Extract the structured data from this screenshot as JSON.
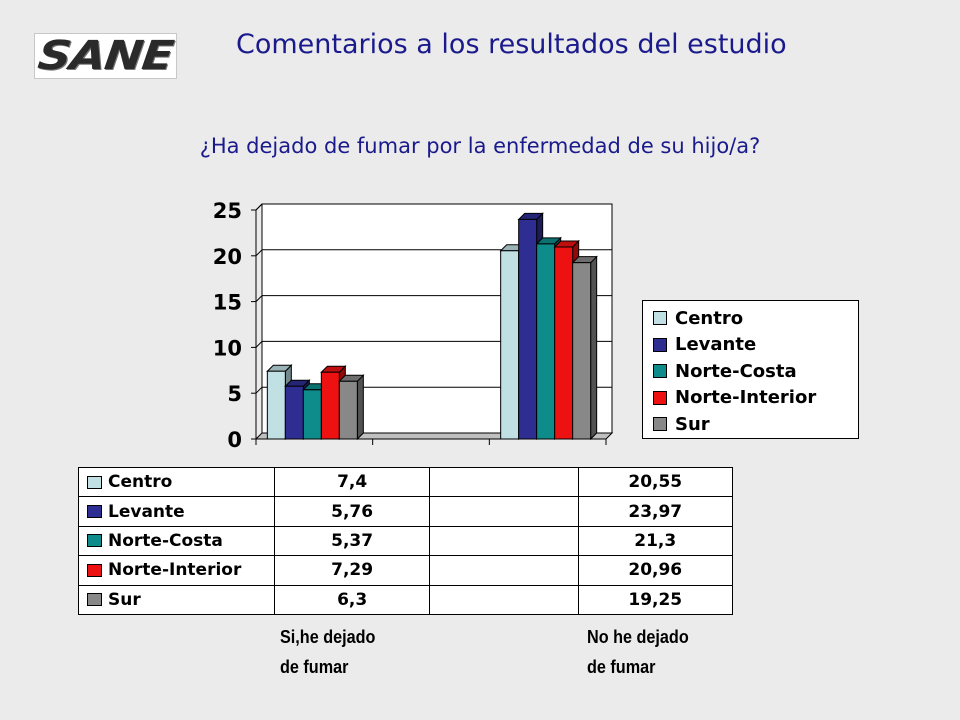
{
  "header": {
    "logo_text": "SANE",
    "title": "Comentarios a los resultados del estudio",
    "question": "¿Ha dejado de fumar por la enfermedad de su hijo/a?"
  },
  "chart_data": {
    "type": "bar",
    "title": "",
    "xlabel": "",
    "ylabel": "",
    "ylim": [
      0,
      25
    ],
    "yticks": [
      0,
      5,
      10,
      15,
      20,
      25
    ],
    "categories": [
      "Si,he dejado de fumar",
      "",
      "No he dejado de fumar"
    ],
    "category_label_lines": [
      [
        "Si,he dejado",
        "de fumar"
      ],
      [],
      [
        "No he dejado",
        "de fumar"
      ]
    ],
    "series": [
      {
        "name": "Centro",
        "color": "#c0e0e4",
        "values": [
          7.4,
          null,
          20.55
        ],
        "labels": [
          "7,4",
          "",
          "20,55"
        ]
      },
      {
        "name": "Levante",
        "color": "#2e2e92",
        "values": [
          5.76,
          null,
          23.97
        ],
        "labels": [
          "5,76",
          "",
          "23,97"
        ]
      },
      {
        "name": "Norte-Costa",
        "color": "#0e8c8c",
        "values": [
          5.37,
          null,
          21.3
        ],
        "labels": [
          "5,37",
          "",
          "21,3"
        ]
      },
      {
        "name": "Norte-Interior",
        "color": "#ee1111",
        "values": [
          7.29,
          null,
          20.96
        ],
        "labels": [
          "7,29",
          "",
          "20,96"
        ]
      },
      {
        "name": "Sur",
        "color": "#888888",
        "values": [
          6.3,
          null,
          19.25
        ],
        "labels": [
          "6,3",
          "",
          "19,25"
        ]
      }
    ],
    "legend_position": "right",
    "grid": true,
    "three_d": true,
    "data_table": true
  }
}
